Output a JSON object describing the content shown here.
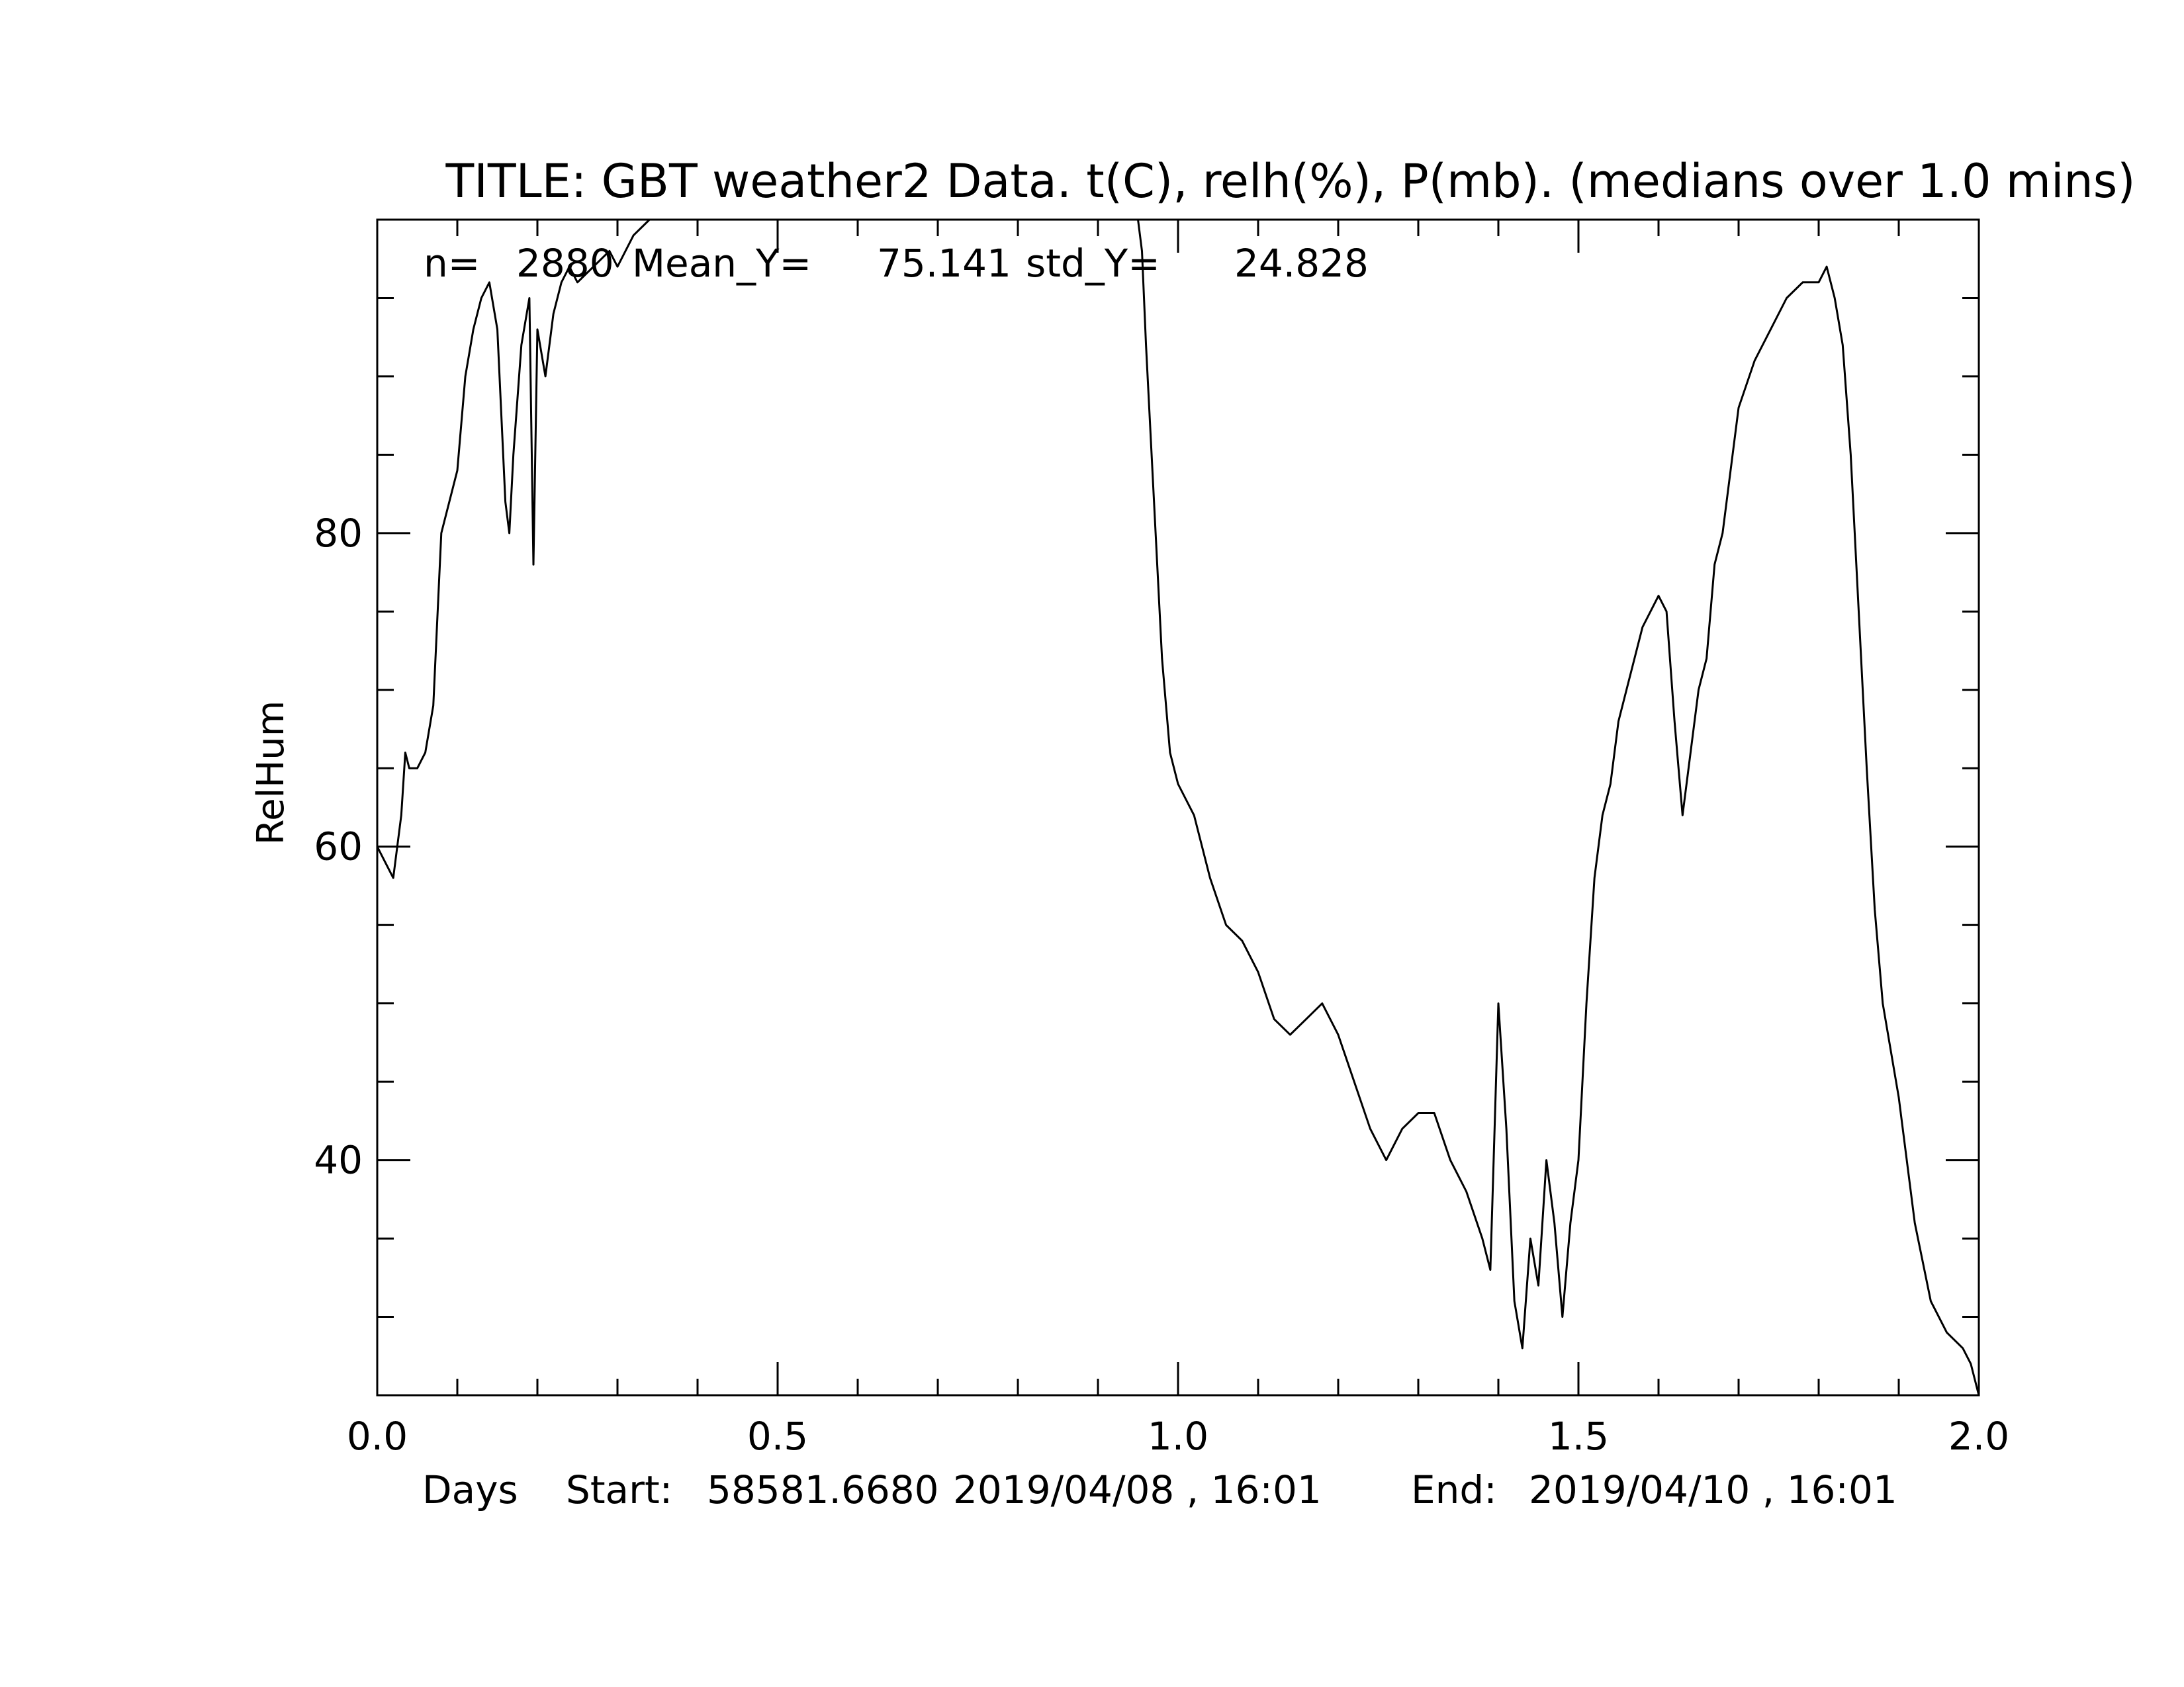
{
  "chart_data": {
    "type": "line",
    "title": "TITLE: GBT weather2 Data. t(C), relh(%), P(mb). (medians over 1.0 mins)",
    "xlabel": "Days",
    "ylabel": "RelHum",
    "xlim": [
      0.0,
      2.0
    ],
    "ylim": [
      25,
      100
    ],
    "x_ticks": [
      "0.0",
      "0.5",
      "1.0",
      "1.5",
      "2.0"
    ],
    "y_ticks": [
      "40",
      "60",
      "80"
    ],
    "stats": {
      "n_label": "n=",
      "n": "2880",
      "mean_label": "Mean_Y=",
      "mean": "75.141",
      "std_label": "std_Y=",
      "std": "24.828"
    },
    "footer": {
      "start_label": "Start:",
      "start_mjd": "58581.6680",
      "start_date": "2019/04/08 , 16:01",
      "end_label": "End:",
      "end_date": "2019/04/10 , 16:01"
    },
    "grid": false,
    "legend": "none",
    "line_color": "#000000",
    "series": [
      {
        "x": [
          0.0,
          0.01,
          0.02,
          0.03,
          0.035,
          0.04,
          0.05,
          0.06,
          0.07,
          0.08,
          0.09,
          0.1,
          0.11,
          0.12,
          0.13,
          0.14,
          0.15,
          0.16,
          0.165,
          0.17,
          0.18,
          0.19,
          0.195,
          0.2,
          0.21,
          0.22,
          0.23,
          0.24,
          0.25,
          0.27,
          0.29,
          0.3,
          0.32,
          0.34,
          0.36,
          0.37,
          0.375,
          0.38,
          0.5,
          0.7,
          0.9,
          0.945,
          0.948,
          0.95,
          0.955,
          0.96,
          0.97,
          0.98,
          0.99,
          1.0,
          1.02,
          1.04,
          1.06,
          1.08,
          1.1,
          1.12,
          1.14,
          1.16,
          1.18,
          1.2,
          1.22,
          1.24,
          1.26,
          1.28,
          1.3,
          1.32,
          1.34,
          1.36,
          1.38,
          1.39,
          1.4,
          1.41,
          1.42,
          1.43,
          1.44,
          1.45,
          1.46,
          1.47,
          1.48,
          1.49,
          1.5,
          1.51,
          1.52,
          1.53,
          1.54,
          1.55,
          1.56,
          1.58,
          1.6,
          1.61,
          1.62,
          1.63,
          1.64,
          1.65,
          1.66,
          1.67,
          1.68,
          1.69,
          1.7,
          1.72,
          1.74,
          1.76,
          1.78,
          1.8,
          1.81,
          1.82,
          1.83,
          1.84,
          1.85,
          1.86,
          1.87,
          1.88,
          1.9,
          1.92,
          1.94,
          1.96,
          1.98,
          1.99,
          2.0
        ],
        "y": [
          60,
          59,
          58,
          62,
          66,
          65,
          65,
          66,
          69,
          80,
          82,
          84,
          90,
          93,
          95,
          96,
          93,
          82,
          80,
          85,
          92,
          95,
          78,
          93,
          90,
          94,
          96,
          97,
          96,
          97,
          98,
          97,
          99,
          100,
          100,
          100,
          100,
          100,
          100,
          100,
          100,
          100,
          100,
          100,
          98,
          92,
          82,
          72,
          66,
          64,
          62,
          58,
          55,
          54,
          52,
          49,
          48,
          49,
          50,
          48,
          45,
          42,
          40,
          42,
          43,
          43,
          40,
          38,
          35,
          33,
          50,
          42,
          31,
          28,
          35,
          32,
          40,
          36,
          30,
          36,
          40,
          50,
          58,
          62,
          64,
          68,
          70,
          74,
          76,
          75,
          68,
          62,
          66,
          70,
          72,
          78,
          80,
          84,
          88,
          91,
          93,
          95,
          96,
          96,
          97,
          95,
          92,
          85,
          75,
          65,
          56,
          50,
          44,
          36,
          31,
          29,
          28,
          27,
          25
        ]
      }
    ]
  }
}
